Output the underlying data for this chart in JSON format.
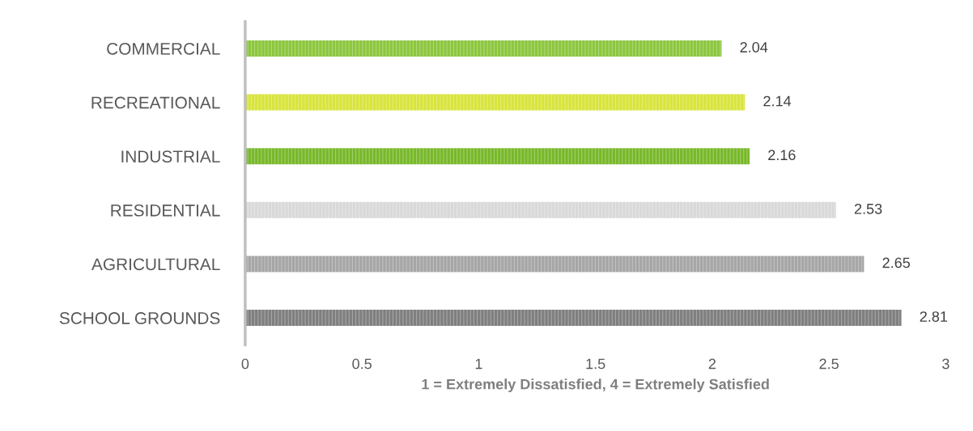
{
  "chart_data": {
    "type": "bar",
    "orientation": "horizontal",
    "xlabel": "1 = Extremely Dissatisfied, 4 = Extremely Satisfied",
    "categories": [
      "COMMERCIAL",
      "RECREATIONAL",
      "INDUSTRIAL",
      "RESIDENTIAL",
      "AGRICULTURAL",
      "SCHOOL GROUNDS"
    ],
    "values": [
      2.04,
      2.14,
      2.16,
      2.53,
      2.65,
      2.81
    ],
    "colors": [
      "#8cc63e",
      "#d8e43c",
      "#78b82a",
      "#d9d9d9",
      "#a6a6a6",
      "#7f7f7f"
    ],
    "xlim": [
      0,
      3
    ],
    "xticks": [
      0,
      0.5,
      1,
      1.5,
      2,
      2.5,
      3
    ],
    "data_labels": true,
    "grid": false,
    "legend": false
  }
}
